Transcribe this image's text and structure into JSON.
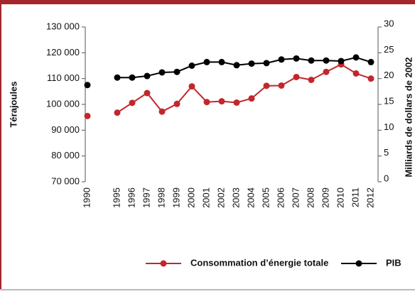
{
  "chart_data": {
    "type": "line",
    "categories": [
      "1990",
      null,
      "1995",
      "1996",
      "1997",
      "1998",
      "1999",
      "2000",
      "2001",
      "2002",
      "2003",
      "2004",
      "2005",
      "2006",
      "2007",
      "2008",
      "2009",
      "2010",
      "2011",
      "2012"
    ],
    "series": [
      {
        "name": "Consommation d’énergie totale",
        "color": "#c1272d",
        "values": [
          95500,
          null,
          96800,
          100600,
          104400,
          97200,
          100200,
          107000,
          100900,
          101200,
          100700,
          102300,
          107200,
          107300,
          110600,
          109500,
          112600,
          115500,
          112000,
          110000
        ]
      },
      {
        "name": "PIB",
        "color": "#000000",
        "axis": "y2",
        "values": [
          18.75,
          null,
          20.2,
          20.2,
          20.5,
          21.2,
          21.3,
          22.5,
          23.2,
          23.2,
          22.6,
          22.9,
          23.0,
          23.7,
          23.9,
          23.5,
          23.5,
          23.4,
          24.1,
          23.2
        ]
      }
    ],
    "ylabel": "Térajoules",
    "y2label": "Milliards de dollars de 2002",
    "ylim": [
      70000,
      130000
    ],
    "yticks": [
      {
        "value": 70000,
        "label": "70 000"
      },
      {
        "value": 80000,
        "label": "80 000"
      },
      {
        "value": 90000,
        "label": "90 000"
      },
      {
        "value": 100000,
        "label": "100 000"
      },
      {
        "value": 110000,
        "label": "110 000"
      },
      {
        "value": 120000,
        "label": "120 000"
      },
      {
        "value": 130000,
        "label": "130 000"
      }
    ],
    "y2lim": [
      0,
      30
    ],
    "y2ticks": [
      0,
      5,
      10,
      15,
      20,
      25,
      30
    ],
    "grid": false
  }
}
